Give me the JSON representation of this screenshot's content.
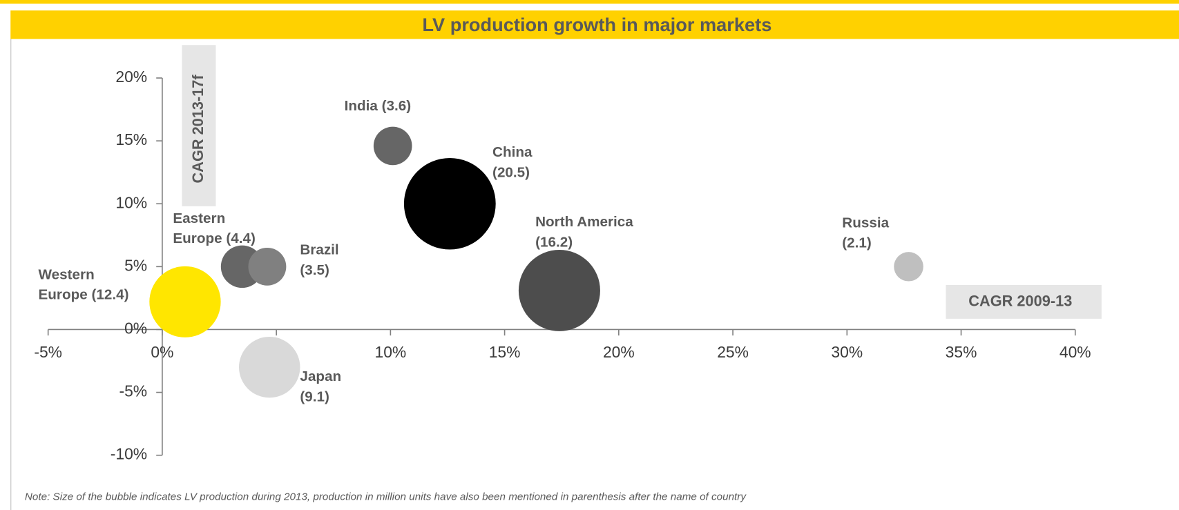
{
  "chart_data": {
    "type": "bubble",
    "title": "LV production growth in major markets",
    "x_label": "CAGR 2009-13",
    "y_label": "CAGR 2013-17f",
    "note": "Note: Size of the bubble indicates LV production during 2013, production in million units have also been mentioned in parenthesis after the name of country",
    "xlim": [
      -5,
      40
    ],
    "xticks": [
      {
        "value": -5,
        "label": "-5%"
      },
      {
        "value": 0,
        "label": "0%"
      },
      {
        "value": 5,
        "label": "5%"
      },
      {
        "value": 10,
        "label": "10%"
      },
      {
        "value": 15,
        "label": "15%"
      },
      {
        "value": 20,
        "label": "20%"
      },
      {
        "value": 25,
        "label": "25%"
      },
      {
        "value": 30,
        "label": "30%"
      },
      {
        "value": 35,
        "label": "35%"
      },
      {
        "value": 40,
        "label": "40%"
      }
    ],
    "ylim": [
      -10,
      20
    ],
    "yticks": [
      {
        "value": -10,
        "label": "-10%"
      },
      {
        "value": -5,
        "label": "-5%"
      },
      {
        "value": 0,
        "label": "0%"
      },
      {
        "value": 5,
        "label": "5%"
      },
      {
        "value": 10,
        "label": "10%"
      },
      {
        "value": 15,
        "label": "15%"
      },
      {
        "value": 20,
        "label": "20%"
      }
    ],
    "points": [
      {
        "labels": [
          "Western",
          "Europe (12.4)"
        ],
        "x": 1.0,
        "y": 2.2,
        "size": 12.4,
        "color": "#ffe600"
      },
      {
        "labels": [
          "Eastern",
          "Europe (4.4)"
        ],
        "x": 3.5,
        "y": 5.0,
        "size": 4.4,
        "color": "#666666"
      },
      {
        "labels": [
          "Brazil",
          "(3.5)"
        ],
        "x": 4.6,
        "y": 5.0,
        "size": 3.5,
        "color": "#808080"
      },
      {
        "labels": [
          "Japan",
          "(9.1)"
        ],
        "x": 4.7,
        "y": -3.0,
        "size": 9.1,
        "color": "#d9d9d9"
      },
      {
        "labels": [
          "India (3.6)"
        ],
        "x": 10.1,
        "y": 14.6,
        "size": 3.6,
        "color": "#666666"
      },
      {
        "labels": [
          "China",
          "(20.5)"
        ],
        "x": 12.6,
        "y": 10.0,
        "size": 20.5,
        "color": "#000000"
      },
      {
        "labels": [
          "North America",
          "(16.2)"
        ],
        "x": 17.4,
        "y": 3.1,
        "size": 16.2,
        "color": "#4d4d4d"
      },
      {
        "labels": [
          "Russia",
          "(2.1)"
        ],
        "x": 32.7,
        "y": 5.0,
        "size": 2.1,
        "color": "#bfbfbf"
      }
    ]
  }
}
